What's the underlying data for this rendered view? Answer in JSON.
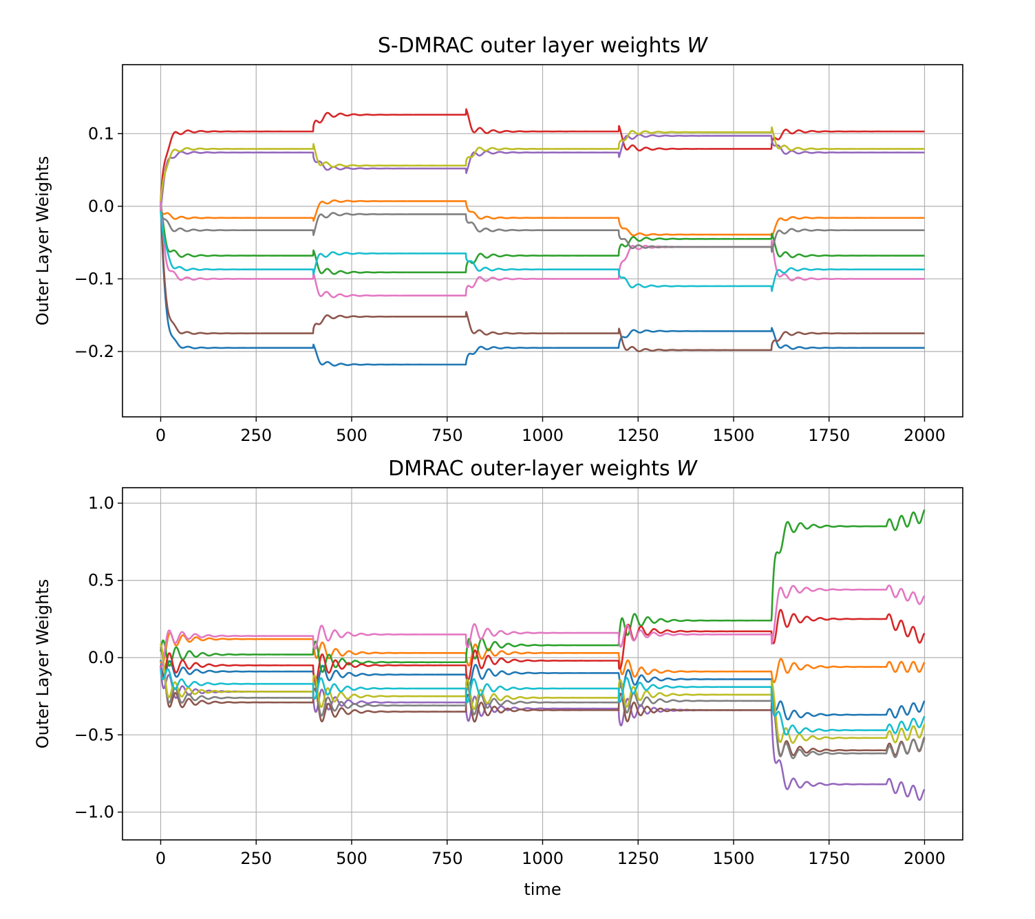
{
  "figure": {
    "xlabel": "time"
  },
  "chart_data": [
    {
      "type": "line",
      "title": "S-DMRAC outer layer weights W",
      "title_main": "S-DMRAC outer layer weights ",
      "title_var": "W",
      "xlabel": "",
      "ylabel": "Outer Layer Weights",
      "xlim": [
        -100,
        2100
      ],
      "ylim": [
        -0.29,
        0.195
      ],
      "grid": true,
      "legend": "none",
      "xticks": [
        0,
        250,
        500,
        750,
        1000,
        1250,
        1500,
        1750,
        2000
      ],
      "xtick_labels": [
        "0",
        "250",
        "500",
        "750",
        "1000",
        "1250",
        "1500",
        "1750",
        "2000"
      ],
      "yticks": [
        0.1,
        0.0,
        -0.1,
        -0.2
      ],
      "ytick_labels": [
        "0.1",
        "0.0",
        "−0.1",
        "−0.2"
      ],
      "segment_starts": [
        0,
        400,
        800,
        1200,
        1600
      ],
      "segment_end": 2000,
      "series": [
        {
          "color": "#1f77b4",
          "levels": [
            -0.195,
            -0.218,
            -0.195,
            -0.172,
            -0.195
          ],
          "osc": 0.035
        },
        {
          "color": "#ff7f0e",
          "levels": [
            -0.016,
            0.007,
            -0.016,
            -0.039,
            -0.016
          ],
          "osc": 0.03
        },
        {
          "color": "#2ca02c",
          "levels": [
            -0.068,
            -0.091,
            -0.068,
            -0.045,
            -0.068
          ],
          "osc": 0.05
        },
        {
          "color": "#d62728",
          "levels": [
            0.103,
            0.126,
            0.103,
            0.079,
            0.103
          ],
          "osc": 0.05
        },
        {
          "color": "#9467bd",
          "levels": [
            0.074,
            0.052,
            0.074,
            0.097,
            0.074
          ],
          "osc": 0.04
        },
        {
          "color": "#8c564b",
          "levels": [
            -0.175,
            -0.152,
            -0.175,
            -0.198,
            -0.175
          ],
          "osc": 0.04
        },
        {
          "color": "#e377c2",
          "levels": [
            -0.1,
            -0.123,
            -0.1,
            -0.056,
            -0.1
          ],
          "osc": 0.05
        },
        {
          "color": "#7f7f7f",
          "levels": [
            -0.033,
            -0.011,
            -0.033,
            -0.056,
            -0.033
          ],
          "osc": 0.04
        },
        {
          "color": "#bcbd22",
          "levels": [
            0.079,
            0.056,
            0.079,
            0.102,
            0.079
          ],
          "osc": 0.04
        },
        {
          "color": "#17becf",
          "levels": [
            -0.087,
            -0.065,
            -0.087,
            -0.11,
            -0.087
          ],
          "osc": 0.04
        }
      ]
    },
    {
      "type": "line",
      "title": "DMRAC outer-layer weights W",
      "title_main": "DMRAC outer-layer weights ",
      "title_var": "W",
      "xlabel": "time",
      "ylabel": "Outer Layer Weights",
      "xlim": [
        -100,
        2100
      ],
      "ylim": [
        -1.18,
        1.1
      ],
      "grid": true,
      "legend": "none",
      "xticks": [
        0,
        250,
        500,
        750,
        1000,
        1250,
        1500,
        1750,
        2000
      ],
      "xtick_labels": [
        "0",
        "250",
        "500",
        "750",
        "1000",
        "1250",
        "1500",
        "1750",
        "2000"
      ],
      "yticks": [
        1.0,
        0.5,
        0.0,
        -0.5,
        -1.0
      ],
      "ytick_labels": [
        "1.0",
        "0.5",
        "0.0",
        "−0.5",
        "−1.0"
      ],
      "segment_starts": [
        0,
        400,
        800,
        1200,
        1600
      ],
      "segment_end": 2000,
      "series": [
        {
          "color": "#1f77b4",
          "levels": [
            -0.09,
            -0.11,
            -0.1,
            -0.14,
            -0.37,
            -0.31
          ],
          "osc": 0.12
        },
        {
          "color": "#ff7f0e",
          "levels": [
            0.12,
            0.03,
            0.03,
            -0.09,
            -0.06,
            -0.06
          ],
          "osc": 0.12
        },
        {
          "color": "#2ca02c",
          "levels": [
            0.02,
            -0.03,
            0.08,
            0.24,
            0.85,
            0.92
          ],
          "osc": 0.15
        },
        {
          "color": "#d62728",
          "levels": [
            -0.05,
            -0.05,
            -0.02,
            0.17,
            0.25,
            0.12
          ],
          "osc": 0.15
        },
        {
          "color": "#9467bd",
          "levels": [
            -0.22,
            -0.29,
            -0.33,
            -0.34,
            -0.82,
            -0.89
          ],
          "osc": 0.15
        },
        {
          "color": "#8c564b",
          "levels": [
            -0.29,
            -0.35,
            -0.34,
            -0.34,
            -0.6,
            -0.56
          ],
          "osc": 0.15
        },
        {
          "color": "#e377c2",
          "levels": [
            0.14,
            0.15,
            0.16,
            0.15,
            0.44,
            0.37
          ],
          "osc": 0.12
        },
        {
          "color": "#7f7f7f",
          "levels": [
            -0.26,
            -0.31,
            -0.29,
            -0.28,
            -0.62,
            -0.55
          ],
          "osc": 0.15
        },
        {
          "color": "#bcbd22",
          "levels": [
            -0.22,
            -0.25,
            -0.26,
            -0.24,
            -0.52,
            -0.47
          ],
          "osc": 0.15
        },
        {
          "color": "#17becf",
          "levels": [
            -0.17,
            -0.2,
            -0.2,
            -0.19,
            -0.47,
            -0.41
          ],
          "osc": 0.12
        }
      ]
    }
  ]
}
